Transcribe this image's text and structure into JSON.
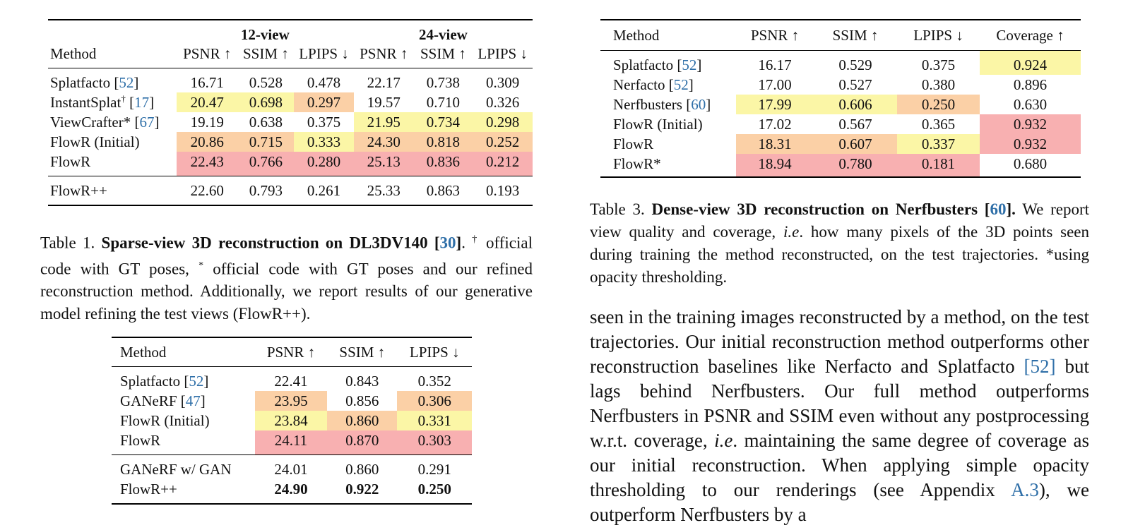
{
  "table1": {
    "group_headers": [
      "12-view",
      "24-view"
    ],
    "method_header": "Method",
    "metric_headers": [
      "PSNR ↑",
      "SSIM ↑",
      "LPIPS ↓",
      "PSNR ↑",
      "SSIM ↑",
      "LPIPS ↓"
    ],
    "rows": [
      {
        "method": "Splatfacto ",
        "sup": "",
        "ref_open": "[",
        "ref": "52",
        "ref_close": "]",
        "values": [
          "16.71",
          "0.528",
          "0.478",
          "22.17",
          "0.738",
          "0.309"
        ]
      },
      {
        "method": "InstantSplat",
        "sup": "†",
        "ref_open": " [",
        "ref": "17",
        "ref_close": "]",
        "values": [
          "20.47",
          "0.698",
          "0.297",
          "19.57",
          "0.710",
          "0.326"
        ]
      },
      {
        "method": "ViewCrafter* ",
        "sup": "",
        "ref_open": "[",
        "ref": "67",
        "ref_close": "]",
        "values": [
          "19.19",
          "0.638",
          "0.375",
          "21.95",
          "0.734",
          "0.298"
        ]
      },
      {
        "method": "FlowR (Initial)",
        "sup": "",
        "ref_open": "",
        "ref": "",
        "ref_close": "",
        "values": [
          "20.86",
          "0.715",
          "0.333",
          "24.30",
          "0.818",
          "0.252"
        ]
      },
      {
        "method": "FlowR",
        "sup": "",
        "ref_open": "",
        "ref": "",
        "ref_close": "",
        "values": [
          "22.43",
          "0.766",
          "0.280",
          "25.13",
          "0.836",
          "0.212"
        ]
      },
      {
        "method": "FlowR++",
        "sup": "",
        "ref_open": "",
        "ref": "",
        "ref_close": "",
        "values": [
          "22.60",
          "0.793",
          "0.261",
          "25.33",
          "0.863",
          "0.193"
        ]
      }
    ]
  },
  "caption1": {
    "label": "Table 1. ",
    "title": "Sparse-view 3D reconstruction on DL3DV140 [",
    "ref": "30",
    "title_end": "]",
    "dot": ". ",
    "sup_dagger": "†",
    "text1": "official code with GT poses, ",
    "sup_star": "*",
    "text2": " official code with GT poses and our refined reconstruction method.  Additionally, we report results of our generative model refining the test views (FlowR++)."
  },
  "table2": {
    "headers": [
      "Method",
      "PSNR ↑",
      "SSIM ↑",
      "LPIPS ↓"
    ],
    "rows": [
      {
        "method": "Splatfacto ",
        "ref_open": "[",
        "ref": "52",
        "ref_close": "]",
        "values": [
          "22.41",
          "0.843",
          "0.352"
        ]
      },
      {
        "method": "GANeRF ",
        "ref_open": "[",
        "ref": "47",
        "ref_close": "]",
        "values": [
          "23.95",
          "0.856",
          "0.306"
        ]
      },
      {
        "method": "FlowR (Initial)",
        "ref_open": "",
        "ref": "",
        "ref_close": "",
        "values": [
          "23.84",
          "0.860",
          "0.331"
        ]
      },
      {
        "method": "FlowR",
        "ref_open": "",
        "ref": "",
        "ref_close": "",
        "values": [
          "24.11",
          "0.870",
          "0.303"
        ]
      },
      {
        "method": "GANeRF w/ GAN",
        "ref_open": "",
        "ref": "",
        "ref_close": "",
        "values": [
          "24.01",
          "0.860",
          "0.291"
        ]
      },
      {
        "method": "FlowR++",
        "ref_open": "",
        "ref": "",
        "ref_close": "",
        "values": [
          "24.90",
          "0.922",
          "0.250"
        ]
      }
    ]
  },
  "table3": {
    "headers": [
      "Method",
      "PSNR ↑",
      "SSIM ↑",
      "LPIPS ↓",
      "Coverage ↑"
    ],
    "rows": [
      {
        "method": "Splatfacto ",
        "ref_open": "[",
        "ref": "52",
        "ref_close": "]",
        "values": [
          "16.17",
          "0.529",
          "0.375",
          "0.924"
        ]
      },
      {
        "method": "Nerfacto ",
        "ref_open": "[",
        "ref": "52",
        "ref_close": "]",
        "values": [
          "17.00",
          "0.527",
          "0.380",
          "0.896"
        ]
      },
      {
        "method": "Nerfbusters ",
        "ref_open": "[",
        "ref": "60",
        "ref_close": "]",
        "values": [
          "17.99",
          "0.606",
          "0.250",
          "0.630"
        ]
      },
      {
        "method": "FlowR (Initial)",
        "ref_open": "",
        "ref": "",
        "ref_close": "",
        "values": [
          "17.02",
          "0.567",
          "0.365",
          "0.932"
        ]
      },
      {
        "method": "FlowR",
        "ref_open": "",
        "ref": "",
        "ref_close": "",
        "values": [
          "18.31",
          "0.607",
          "0.337",
          "0.932"
        ]
      },
      {
        "method": "FlowR*",
        "ref_open": "",
        "ref": "",
        "ref_close": "",
        "values": [
          "18.94",
          "0.780",
          "0.181",
          "0.680"
        ]
      }
    ]
  },
  "caption3": {
    "label": "Table 3. ",
    "title": "Dense-view 3D reconstruction on Nerfbusters [",
    "ref": "60",
    "title_end": "].",
    "text1": " We report view quality and coverage, ",
    "ie": "i.e",
    "text2": ". how many pixels of the 3D points seen during training the method reconstructed, on the test trajectories. *using opacity thresholding."
  },
  "body": {
    "text1": "seen in the training images reconstructed by a method, on the test trajectories.  Our initial reconstruction method outperforms other reconstruction baselines like Nerfacto and Splatfacto ",
    "ref1": "[52]",
    "text2": " but lags behind Nerfbusters.  Our full method outperforms Nerfbusters in PSNR and SSIM even without any postprocessing w.r.t. coverage, ",
    "ie": "i.e",
    "text3": ". maintaining the same degree of coverage as our initial reconstruction. When applying simple opacity thresholding to our renderings (see Appendix ",
    "ref2": "A.3",
    "text4": "), we outperform Nerfbusters by a"
  },
  "colors": {
    "yellow": "#fbf6a6",
    "orange": "#fbd0a6",
    "red": "#f8b0b1",
    "ref_blue": "#2f6fa8"
  }
}
